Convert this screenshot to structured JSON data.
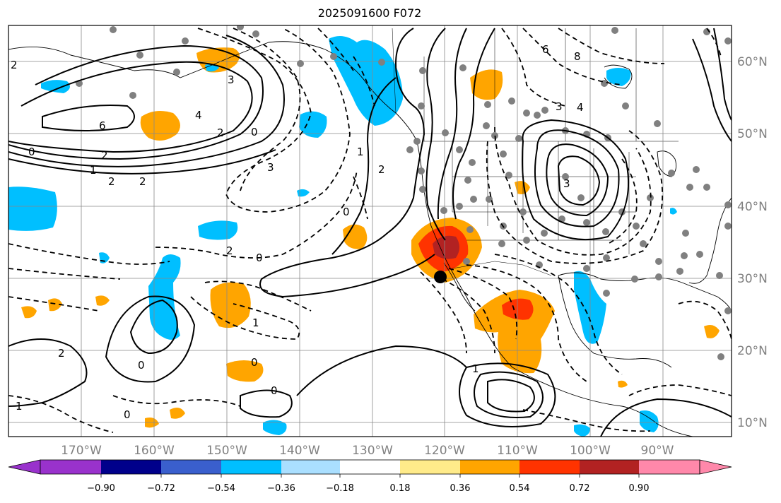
{
  "title": "2025091600 F072",
  "map": {
    "lon_labels": [
      "170°W",
      "160°W",
      "150°W",
      "140°W",
      "130°W",
      "120°W",
      "110°W",
      "100°W",
      "90°W"
    ],
    "lat_labels": [
      "60°N",
      "50°N",
      "40°N",
      "30°N",
      "20°N",
      "10°N"
    ],
    "contour_labels": [
      "2",
      "3",
      "6",
      "4",
      "2",
      "0",
      "2",
      "1",
      "2",
      "2",
      "3",
      "0",
      "2",
      "0",
      "2",
      "6",
      "8",
      "3",
      "4",
      "3",
      "0",
      "1",
      "1",
      "2",
      "0",
      "0",
      "0",
      "1",
      "0",
      "1"
    ],
    "colors": {
      "orange": "#ffa500",
      "red_orange": "#ff3300",
      "dark_red": "#b22222",
      "cyan": "#00bfff",
      "light_blue": "#aadfff",
      "station_dot": "#808080"
    }
  },
  "colorbar": {
    "tick_labels": [
      "−0.90",
      "−0.72",
      "−0.54",
      "−0.36",
      "−0.18",
      "0.18",
      "0.36",
      "0.54",
      "0.72",
      "0.90"
    ],
    "segment_colors": [
      "#9932cc",
      "#9932cc",
      "#00008b",
      "#3a5fcd",
      "#00bfff",
      "#aadfff",
      "#ffffff",
      "#ffeb8a",
      "#ffa500",
      "#ff3300",
      "#b22222",
      "#ff88aa",
      "#ff88aa"
    ]
  }
}
